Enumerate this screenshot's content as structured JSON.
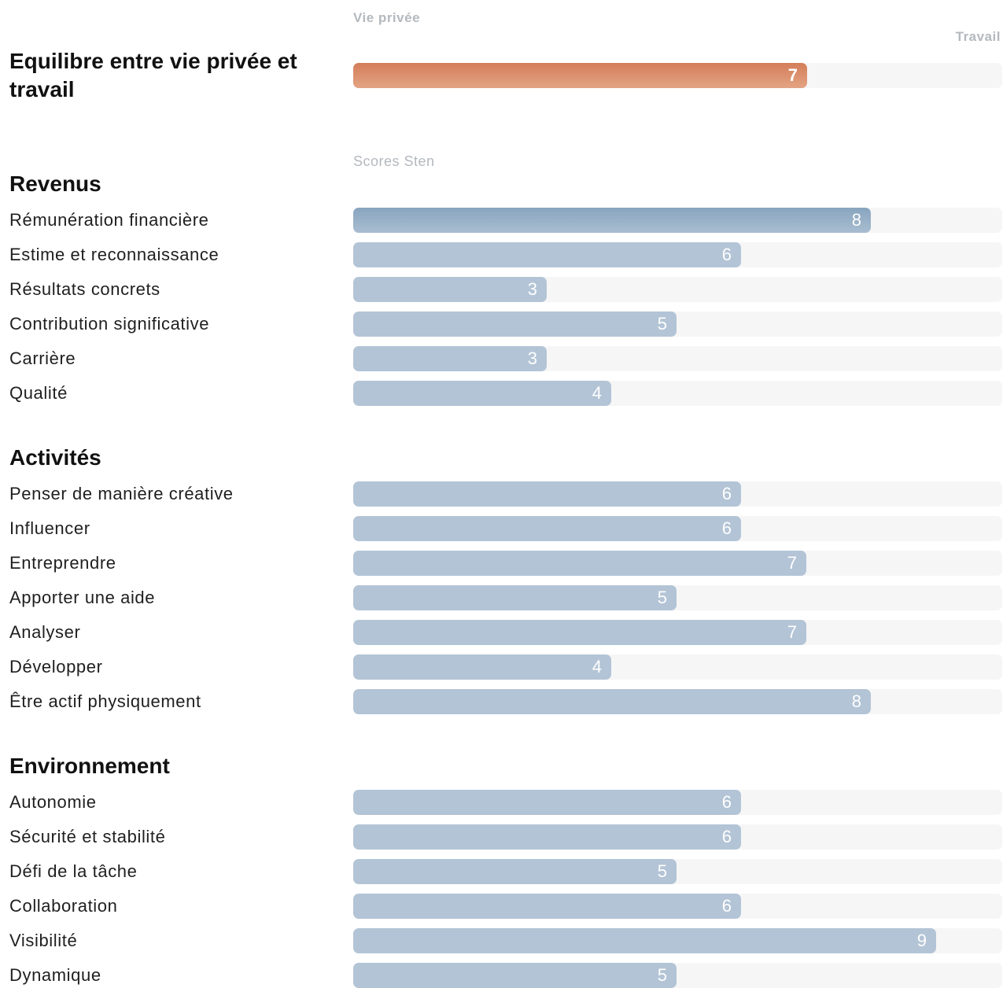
{
  "balance": {
    "left_label": "Vie privée",
    "right_label": "Travail",
    "title": "Equilibre entre vie privée et travail",
    "value": 7,
    "color": "#d98a65"
  },
  "scores_label": "Scores Sten",
  "chart_data": {
    "type": "bar",
    "orientation": "horizontal",
    "xlim": [
      0,
      10
    ],
    "groups": [
      {
        "title": "Revenus",
        "categories": [
          "Rémunération financière",
          "Estime et reconnaissance",
          "Résultats concrets",
          "Contribution significative",
          "Carrière",
          "Qualité"
        ],
        "values": [
          8,
          6,
          3,
          5,
          3,
          4
        ]
      },
      {
        "title": "Activités",
        "categories": [
          "Penser de manière créative",
          "Influencer",
          "Entreprendre",
          "Apporter une aide",
          "Analyser",
          "Développer",
          "Être actif physiquement"
        ],
        "values": [
          6,
          6,
          7,
          5,
          7,
          4,
          8
        ]
      },
      {
        "title": "Environnement",
        "categories": [
          "Autonomie",
          "Sécurité et stabilité",
          "Défi de la tâche",
          "Collaboration",
          "Visibilité",
          "Dynamique"
        ],
        "values": [
          6,
          6,
          5,
          6,
          9,
          5
        ]
      }
    ],
    "colors": {
      "bar": "#b3c4d6",
      "highlight": "#8fa9c2",
      "track": "#f6f6f6"
    }
  }
}
